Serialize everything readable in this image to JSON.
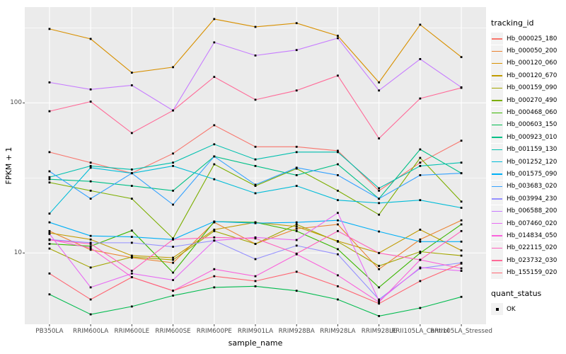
{
  "figure": {
    "x_axis_title": "sample_name",
    "y_axis_title": "FPKM + 1",
    "legend_title": "tracking_id",
    "legend2_title": "quant_status",
    "panel_bg": "#EBEBEB",
    "grid_color": "#FFFFFF",
    "tick_label_color": "#4D4D4D",
    "point_color": "#000000"
  },
  "chart_data": {
    "type": "line",
    "title": "",
    "xlabel": "sample_name",
    "ylabel": "FPKM + 1",
    "x_categories": [
      "PB350LA",
      "RRIM600LA",
      "RRIM600LE",
      "RRIM600SE",
      "RRIM600PE",
      "RRIM901LA",
      "RRIM928BA",
      "RRIM928LA",
      "RRIM928LE",
      "RRII105LA_Control",
      "RRII105LA_Stressed"
    ],
    "y_scale": "log10",
    "y_tick_values": [
      10,
      100
    ],
    "y_tick_labels": [
      "10",
      "100"
    ],
    "y_minor_tick_values": [
      31.62,
      316.23
    ],
    "ylim": [
      3.35,
      435
    ],
    "grid": true,
    "legend_position": "right",
    "legend_title": "tracking_id",
    "quant_status_legend": {
      "title": "quant_status",
      "items": [
        "OK"
      ],
      "marker": "black-square"
    },
    "series": [
      {
        "name": "Hb_000025_180",
        "color": "#F8766D",
        "values": [
          47,
          40,
          34,
          46,
          71,
          51,
          51,
          48,
          26,
          40,
          56
        ]
      },
      {
        "name": "Hb_000050_200",
        "color": "#EA8331",
        "values": [
          14,
          10.5,
          9.3,
          8.6,
          16,
          11.5,
          14.5,
          15.5,
          7.8,
          12.3,
          16.5
        ]
      },
      {
        "name": "Hb_000120_060",
        "color": "#D89000",
        "values": [
          311,
          267,
          159,
          173,
          362,
          321,
          340,
          280,
          137,
          332,
          202
        ]
      },
      {
        "name": "Hb_000120_670",
        "color": "#C09B00",
        "values": [
          13.6,
          12.3,
          9.6,
          9.3,
          14.3,
          16,
          15,
          12,
          10,
          14.3,
          10.4
        ]
      },
      {
        "name": "Hb_000159_090",
        "color": "#A3A500",
        "values": [
          10.7,
          8.0,
          9.4,
          9.0,
          14.0,
          11.5,
          15.5,
          11.9,
          8.2,
          10.2,
          9.6
        ]
      },
      {
        "name": "Hb_000270_490",
        "color": "#7CAE00",
        "values": [
          29.5,
          26,
          23,
          12.5,
          39,
          28,
          36.5,
          26,
          18,
          43,
          22
        ]
      },
      {
        "name": "Hb_000468_060",
        "color": "#39B600",
        "values": [
          11.5,
          11.1,
          14.1,
          7.4,
          16.2,
          16,
          14,
          10.6,
          5.9,
          10,
          15.5
        ]
      },
      {
        "name": "Hb_000603_150",
        "color": "#00BB4E",
        "values": [
          5.3,
          3.9,
          4.4,
          5.2,
          5.9,
          6.0,
          5.6,
          4.9,
          3.8,
          4.3,
          5.1
        ]
      },
      {
        "name": "Hb_000923_010",
        "color": "#00C087",
        "values": [
          31,
          30,
          28,
          26,
          44,
          38,
          33,
          39,
          23,
          49,
          34
        ]
      },
      {
        "name": "Hb_001159_130",
        "color": "#00C0AF",
        "values": [
          32,
          38,
          36,
          40,
          53,
          42,
          47,
          47,
          27,
          38,
          40
        ]
      },
      {
        "name": "Hb_001252_120",
        "color": "#00BCD8",
        "values": [
          18.3,
          37,
          34,
          38,
          31,
          25,
          28,
          22.5,
          21.5,
          22.5,
          20
        ]
      },
      {
        "name": "Hb_001575_090",
        "color": "#00B0F6",
        "values": [
          16,
          13,
          12.8,
          12.3,
          16.2,
          15.8,
          16,
          16.5,
          13.9,
          11.9,
          11.9
        ]
      },
      {
        "name": "Hb_003683_020",
        "color": "#35A2FF",
        "values": [
          35,
          23,
          34,
          21,
          44,
          28.5,
          37,
          33,
          23,
          33,
          34
        ]
      },
      {
        "name": "Hb_003994_230",
        "color": "#9590FF",
        "values": [
          12.3,
          11.7,
          11.7,
          11,
          12.1,
          9.1,
          11.2,
          9.8,
          4.9,
          7.9,
          8.6
        ]
      },
      {
        "name": "Hb_006588_200",
        "color": "#C77CFF",
        "values": [
          137,
          123,
          131,
          89,
          253,
          207,
          225,
          270,
          121,
          196,
          127
        ]
      },
      {
        "name": "Hb_007460_020",
        "color": "#E76BF3",
        "values": [
          13.4,
          5.9,
          7.3,
          6.6,
          12.1,
          12.7,
          12.2,
          18.5,
          4.8,
          8.0,
          7.6
        ]
      },
      {
        "name": "Hb_014834_050",
        "color": "#FA62DB",
        "values": [
          12.3,
          10.8,
          6.9,
          5.6,
          7.8,
          7.0,
          9.8,
          7.1,
          4.7,
          9.0,
          7.9
        ]
      },
      {
        "name": "Hb_022115_020",
        "color": "#FF62BC",
        "values": [
          12.2,
          11.5,
          7.6,
          12.3,
          12.7,
          12.5,
          9.9,
          14.0,
          10.0,
          9.0,
          14.0
        ]
      },
      {
        "name": "Hb_023732_030",
        "color": "#FF6A98",
        "values": [
          88,
          102,
          63,
          89,
          149,
          105,
          121,
          152,
          58,
          107,
          126
        ]
      },
      {
        "name": "Hb_155159_020",
        "color": "#FF6572",
        "values": [
          7.3,
          4.9,
          6.9,
          5.6,
          7.0,
          6.5,
          7.5,
          6.0,
          4.6,
          6.5,
          8.5
        ]
      }
    ]
  }
}
